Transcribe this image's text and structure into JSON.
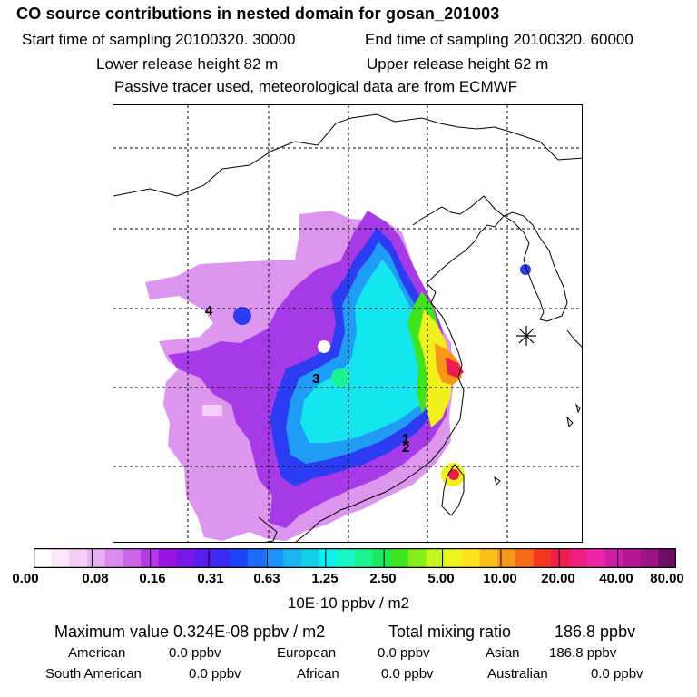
{
  "title": "CO  source contributions in nested domain for gosan_201003",
  "line2": {
    "start": "Start time of sampling 20100320. 30000",
    "end": "End time of sampling 20100320. 60000"
  },
  "line3": {
    "lower": "Lower release height   82 m",
    "upper": "Upper release height   62 m"
  },
  "line4": "Passive tracer used, meteorological data are from ECMWF",
  "map": {
    "source_markers": [
      "1",
      "2",
      "3",
      "4"
    ],
    "receptor_icon": "asterisk-receptor-icon",
    "gridlines": "dashed"
  },
  "colorbar": {
    "colors": [
      "#ffffff",
      "#fbe7fb",
      "#f3cdf5",
      "#e9b0f1",
      "#dc8cee",
      "#cd66ea",
      "#b53ae6",
      "#9b12e1",
      "#7a18ea",
      "#5a1ff0",
      "#3a2cf4",
      "#1c45f5",
      "#1d6cf8",
      "#1d92f7",
      "#1bb4f3",
      "#11cfe9",
      "#0cf0f0",
      "#16f7c4",
      "#19f58c",
      "#1ee85b",
      "#3ee51d",
      "#86ee18",
      "#c4f51b",
      "#eef41b",
      "#fce31c",
      "#fbbf1a",
      "#f79717",
      "#f46a18",
      "#f2391f",
      "#ee1c4d",
      "#ef1f82",
      "#ee27a8",
      "#d21ea6",
      "#b71796",
      "#9a1484",
      "#6e0d63"
    ],
    "tick_labels": [
      "0.00",
      "0.08",
      "0.16",
      "0.31",
      "0.63",
      "1.25",
      "2.50",
      "5.00",
      "10.00",
      "20.00",
      "40.00",
      "80.00"
    ],
    "units": "10E-10 ppbv / m2"
  },
  "summary": {
    "max_label": "Maximum value  0.324E-08 ppbv / m2",
    "total_label": "Total mixing ratio",
    "total_value": "186.8 ppbv"
  },
  "regions": [
    {
      "name": "American",
      "value": "0.0 ppbv"
    },
    {
      "name": "European",
      "value": "0.0 ppbv"
    },
    {
      "name": "Asian",
      "value": "186.8 ppbv"
    },
    {
      "name": "South American",
      "value": "0.0 ppbv"
    },
    {
      "name": "African",
      "value": "0.0 ppbv"
    },
    {
      "name": "Australian",
      "value": "0.0 ppbv"
    }
  ]
}
